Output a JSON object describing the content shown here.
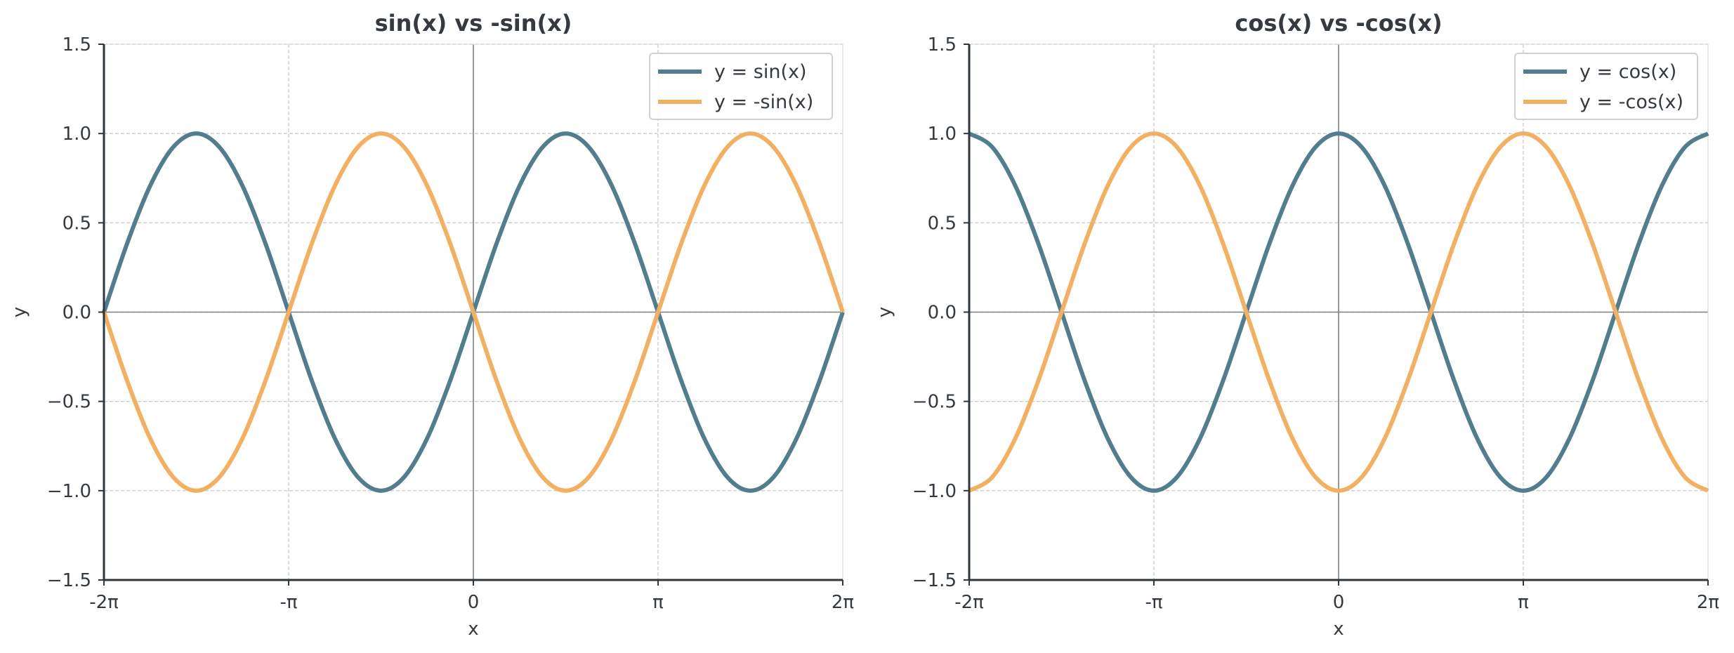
{
  "colors": {
    "series_primary": "#527d8f",
    "series_secondary": "#f2b062",
    "text": "#343a40"
  },
  "chart_data": [
    {
      "type": "line",
      "title": "sin(x) vs -sin(x)",
      "xlabel": "x",
      "ylabel": "y",
      "xlim": [
        -6.283185,
        6.283185
      ],
      "ylim": [
        -1.5,
        1.5
      ],
      "xticks": [
        -6.283185,
        -3.141593,
        0,
        3.141593,
        6.283185
      ],
      "xtick_labels": [
        "-2π",
        "-π",
        "0",
        "π",
        "2π"
      ],
      "yticks": [
        -1.5,
        -1.0,
        -0.5,
        0.0,
        0.5,
        1.0,
        1.5
      ],
      "ytick_labels": [
        "−1.5",
        "−1.0",
        "−0.5",
        "0.0",
        "0.5",
        "1.0",
        "1.5"
      ],
      "grid": true,
      "legend_position": "top-right",
      "x": [
        -6.2832,
        -5.8905,
        -5.4978,
        -5.1051,
        -4.7124,
        -4.3197,
        -3.927,
        -3.5343,
        -3.1416,
        -2.7489,
        -2.3562,
        -1.9635,
        -1.5708,
        -1.1781,
        -0.7854,
        -0.3927,
        0,
        0.3927,
        0.7854,
        1.1781,
        1.5708,
        1.9635,
        2.3562,
        2.7489,
        3.1416,
        3.5343,
        3.927,
        4.3197,
        4.7124,
        5.1051,
        5.4978,
        5.8905,
        6.2832
      ],
      "series": [
        {
          "name": "y = sin(x)",
          "color": "#527d8f",
          "values": [
            0,
            0.3827,
            0.7071,
            0.9239,
            1,
            0.9239,
            0.7071,
            0.3827,
            0,
            -0.3827,
            -0.7071,
            -0.9239,
            -1,
            -0.9239,
            -0.7071,
            -0.3827,
            0,
            0.3827,
            0.7071,
            0.9239,
            1,
            0.9239,
            0.7071,
            0.3827,
            0,
            -0.3827,
            -0.7071,
            -0.9239,
            -1,
            -0.9239,
            -0.7071,
            -0.3827,
            0
          ]
        },
        {
          "name": "y = -sin(x)",
          "color": "#f2b062",
          "values": [
            0,
            -0.3827,
            -0.7071,
            -0.9239,
            -1,
            -0.9239,
            -0.7071,
            -0.3827,
            0,
            0.3827,
            0.7071,
            0.9239,
            1,
            0.9239,
            0.7071,
            0.3827,
            0,
            -0.3827,
            -0.7071,
            -0.9239,
            -1,
            -0.9239,
            -0.7071,
            -0.3827,
            0,
            0.3827,
            0.7071,
            0.9239,
            1,
            0.9239,
            0.7071,
            0.3827,
            0
          ]
        }
      ]
    },
    {
      "type": "line",
      "title": "cos(x) vs -cos(x)",
      "xlabel": "x",
      "ylabel": "y",
      "xlim": [
        -6.283185,
        6.283185
      ],
      "ylim": [
        -1.5,
        1.5
      ],
      "xticks": [
        -6.283185,
        -3.141593,
        0,
        3.141593,
        6.283185
      ],
      "xtick_labels": [
        "-2π",
        "-π",
        "0",
        "π",
        "2π"
      ],
      "yticks": [
        -1.5,
        -1.0,
        -0.5,
        0.0,
        0.5,
        1.0,
        1.5
      ],
      "ytick_labels": [
        "−1.5",
        "−1.0",
        "−0.5",
        "0.0",
        "0.5",
        "1.0",
        "1.5"
      ],
      "grid": true,
      "legend_position": "top-right",
      "x": [
        -6.2832,
        -5.8905,
        -5.4978,
        -5.1051,
        -4.7124,
        -4.3197,
        -3.927,
        -3.5343,
        -3.1416,
        -2.7489,
        -2.3562,
        -1.9635,
        -1.5708,
        -1.1781,
        -0.7854,
        -0.3927,
        0,
        0.3927,
        0.7854,
        1.1781,
        1.5708,
        1.9635,
        2.3562,
        2.7489,
        3.1416,
        3.5343,
        3.927,
        4.3197,
        4.7124,
        5.1051,
        5.4978,
        5.8905,
        6.2832
      ],
      "series": [
        {
          "name": "y = cos(x)",
          "color": "#527d8f",
          "values": [
            1,
            0.9239,
            0.7071,
            0.3827,
            0,
            -0.3827,
            -0.7071,
            -0.9239,
            -1,
            -0.9239,
            -0.7071,
            -0.3827,
            0,
            0.3827,
            0.7071,
            0.9239,
            1,
            0.9239,
            0.7071,
            0.3827,
            0,
            -0.3827,
            -0.7071,
            -0.9239,
            -1,
            -0.9239,
            -0.7071,
            -0.3827,
            0,
            0.3827,
            0.7071,
            0.9239,
            1
          ]
        },
        {
          "name": "y = -cos(x)",
          "color": "#f2b062",
          "values": [
            -1,
            -0.9239,
            -0.7071,
            -0.3827,
            0,
            0.3827,
            0.7071,
            0.9239,
            1,
            0.9239,
            0.7071,
            0.3827,
            0,
            -0.3827,
            -0.7071,
            -0.9239,
            -1,
            -0.9239,
            -0.7071,
            -0.3827,
            0,
            0.3827,
            0.7071,
            0.9239,
            1,
            0.9239,
            0.7071,
            0.3827,
            0,
            -0.3827,
            -0.7071,
            -0.9239,
            -1
          ]
        }
      ]
    }
  ]
}
